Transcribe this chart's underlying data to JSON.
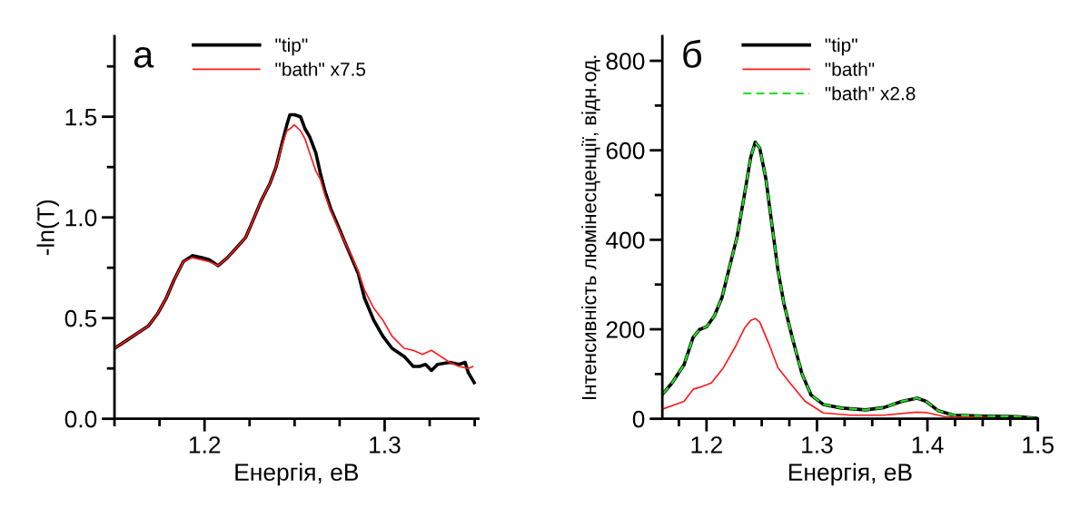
{
  "chart_data": [
    {
      "type": "line",
      "xlabel": "Енергія, еВ",
      "ylabel": "-ln(T)",
      "annotations": [
        "а"
      ],
      "legend": "top left",
      "xlim": [
        1.15,
        1.352
      ],
      "ylim": [
        0,
        1.9
      ],
      "xticks": [
        {
          "value": 1.15,
          "label": null
        },
        {
          "value": 1.175,
          "label": null
        },
        {
          "value": 1.2,
          "label": "1.2"
        },
        {
          "value": 1.225,
          "label": null
        },
        {
          "value": 1.25,
          "label": null
        },
        {
          "value": 1.275,
          "label": null
        },
        {
          "value": 1.3,
          "label": "1.3"
        },
        {
          "value": 1.325,
          "label": null
        },
        {
          "value": 1.35,
          "label": null
        }
      ],
      "yticks": [
        {
          "value": 0,
          "label": "0.0"
        },
        {
          "value": 0.25,
          "label": null
        },
        {
          "value": 0.5,
          "label": "0.5"
        },
        {
          "value": 0.75,
          "label": null
        },
        {
          "value": 1.0,
          "label": "1.0"
        },
        {
          "value": 1.25,
          "label": null
        },
        {
          "value": 1.5,
          "label": "1.5"
        },
        {
          "value": 1.75,
          "label": null
        }
      ],
      "series": [
        {
          "name": "\"tip\"",
          "color": "#000000",
          "x": [
            1.1501,
            1.1569,
            1.1636,
            1.1687,
            1.1738,
            1.1788,
            1.1831,
            1.1882,
            1.1932,
            1.1983,
            1.2025,
            1.2076,
            1.2127,
            1.2178,
            1.2228,
            1.2262,
            1.2313,
            1.2364,
            1.2397,
            1.2431,
            1.2457,
            1.2474,
            1.2499,
            1.2533,
            1.2558,
            1.2584,
            1.2618,
            1.2643,
            1.2669,
            1.2702,
            1.2736,
            1.2778,
            1.2821,
            1.2854,
            1.2888,
            1.2939,
            1.299,
            1.3041,
            1.3108,
            1.3159,
            1.3193,
            1.3227,
            1.326,
            1.3294,
            1.3362,
            1.3413,
            1.3447,
            1.3464,
            1.3497
          ],
          "values": [
            0.35,
            0.39,
            0.43,
            0.46,
            0.52,
            0.6,
            0.69,
            0.78,
            0.81,
            0.8,
            0.79,
            0.76,
            0.8,
            0.85,
            0.9,
            0.97,
            1.08,
            1.17,
            1.25,
            1.37,
            1.46,
            1.51,
            1.51,
            1.5,
            1.44,
            1.4,
            1.32,
            1.22,
            1.13,
            1.04,
            0.97,
            0.88,
            0.79,
            0.72,
            0.6,
            0.49,
            0.41,
            0.35,
            0.31,
            0.26,
            0.26,
            0.27,
            0.24,
            0.27,
            0.28,
            0.27,
            0.28,
            0.23,
            0.18
          ]
        },
        {
          "name": "\"bath\" x7.5",
          "color": "#ff1a1a",
          "x": [
            1.1501,
            1.1569,
            1.1636,
            1.1687,
            1.1738,
            1.1788,
            1.1831,
            1.1882,
            1.1932,
            1.1983,
            1.2025,
            1.2076,
            1.2127,
            1.2178,
            1.2228,
            1.2262,
            1.2313,
            1.2364,
            1.2397,
            1.2431,
            1.2457,
            1.2474,
            1.2499,
            1.2533,
            1.2558,
            1.2584,
            1.2618,
            1.2643,
            1.2669,
            1.2702,
            1.2736,
            1.2778,
            1.2821,
            1.2854,
            1.2888,
            1.2939,
            1.299,
            1.3041,
            1.3108,
            1.3159,
            1.321,
            1.326,
            1.3311,
            1.3362,
            1.3413,
            1.3464,
            1.3489
          ],
          "values": [
            0.35,
            0.39,
            0.43,
            0.46,
            0.52,
            0.6,
            0.69,
            0.78,
            0.8,
            0.79,
            0.78,
            0.76,
            0.8,
            0.85,
            0.9,
            0.97,
            1.08,
            1.17,
            1.25,
            1.36,
            1.43,
            1.44,
            1.46,
            1.43,
            1.39,
            1.32,
            1.23,
            1.19,
            1.11,
            1.03,
            0.96,
            0.88,
            0.8,
            0.73,
            0.64,
            0.55,
            0.49,
            0.41,
            0.35,
            0.34,
            0.32,
            0.34,
            0.31,
            0.28,
            0.26,
            0.25,
            0.26
          ]
        }
      ]
    },
    {
      "type": "line",
      "xlabel": "Енергія, еВ",
      "ylabel": "Інтенсивність люмінесценції, відн.од.",
      "annotations": [
        "б"
      ],
      "legend": "top left",
      "xlim": [
        1.16,
        1.5
      ],
      "ylim": [
        0,
        855
      ],
      "xticks": [
        {
          "value": 1.175,
          "label": null
        },
        {
          "value": 1.2,
          "label": "1.2"
        },
        {
          "value": 1.225,
          "label": null
        },
        {
          "value": 1.25,
          "label": null
        },
        {
          "value": 1.275,
          "label": null
        },
        {
          "value": 1.3,
          "label": "1.3"
        },
        {
          "value": 1.325,
          "label": null
        },
        {
          "value": 1.35,
          "label": null
        },
        {
          "value": 1.375,
          "label": null
        },
        {
          "value": 1.4,
          "label": "1.4"
        },
        {
          "value": 1.425,
          "label": null
        },
        {
          "value": 1.45,
          "label": null
        },
        {
          "value": 1.475,
          "label": null
        },
        {
          "value": 1.5,
          "label": "1.5"
        }
      ],
      "yticks": [
        0,
        {
          "value": 100,
          "label": null
        },
        200,
        {
          "value": 300,
          "label": null
        },
        400,
        {
          "value": 500,
          "label": null
        },
        600,
        {
          "value": 700,
          "label": null
        },
        800
      ],
      "series": [
        {
          "name": "\"tip\"",
          "color": "#000000",
          "x": [
            1.1606,
            1.1688,
            1.1797,
            1.1879,
            1.1934,
            1.2003,
            1.2071,
            1.214,
            1.2208,
            1.2277,
            1.2345,
            1.24,
            1.2441,
            1.2482,
            1.2537,
            1.2592,
            1.2647,
            1.2701,
            1.2783,
            1.2865,
            1.2947,
            1.3057,
            1.3222,
            1.344,
            1.3605,
            1.3769,
            1.3906,
            1.3988,
            1.4098,
            1.4235,
            1.4537,
            1.481,
            1.5
          ],
          "values": [
            56,
            80,
            121,
            182,
            199,
            206,
            230,
            271,
            339,
            407,
            503,
            584,
            618,
            605,
            537,
            434,
            332,
            257,
            175,
            100,
            53,
            32,
            24,
            20,
            25,
            39,
            46,
            39,
            18,
            8,
            6,
            5,
            1
          ]
        },
        {
          "name": "\"bath\"",
          "color": "#ff1a1a",
          "x": [
            1.1606,
            1.1797,
            1.1879,
            1.1934,
            1.2044,
            1.2153,
            1.2263,
            1.2345,
            1.24,
            1.2441,
            1.2482,
            1.2564,
            1.2647,
            1.2756,
            1.2893,
            1.3057,
            1.3304,
            1.3605,
            1.3906,
            1.3988,
            1.4153,
            1.4537
          ],
          "values": [
            22,
            39,
            66,
            70,
            80,
            114,
            162,
            203,
            220,
            224,
            216,
            168,
            114,
            80,
            39,
            13,
            8,
            8,
            15,
            14,
            5,
            3
          ]
        },
        {
          "name": "\"bath\" x2.8",
          "color": "#22dd22",
          "line_style": "dashed",
          "x": [
            1.1606,
            1.1688,
            1.1797,
            1.1879,
            1.1934,
            1.2003,
            1.2071,
            1.214,
            1.2208,
            1.2277,
            1.2345,
            1.24,
            1.2441,
            1.2482,
            1.2537,
            1.2592,
            1.2647,
            1.2701,
            1.2783,
            1.2865,
            1.2947,
            1.3057,
            1.3222,
            1.344,
            1.3605,
            1.3769,
            1.3906,
            1.3988,
            1.4098,
            1.4235,
            1.4537,
            1.481,
            1.5
          ],
          "values": [
            56,
            80,
            121,
            182,
            199,
            206,
            230,
            271,
            339,
            407,
            503,
            584,
            618,
            605,
            537,
            434,
            332,
            257,
            175,
            100,
            53,
            32,
            24,
            20,
            25,
            39,
            46,
            39,
            18,
            8,
            6,
            5,
            1
          ]
        }
      ]
    }
  ]
}
